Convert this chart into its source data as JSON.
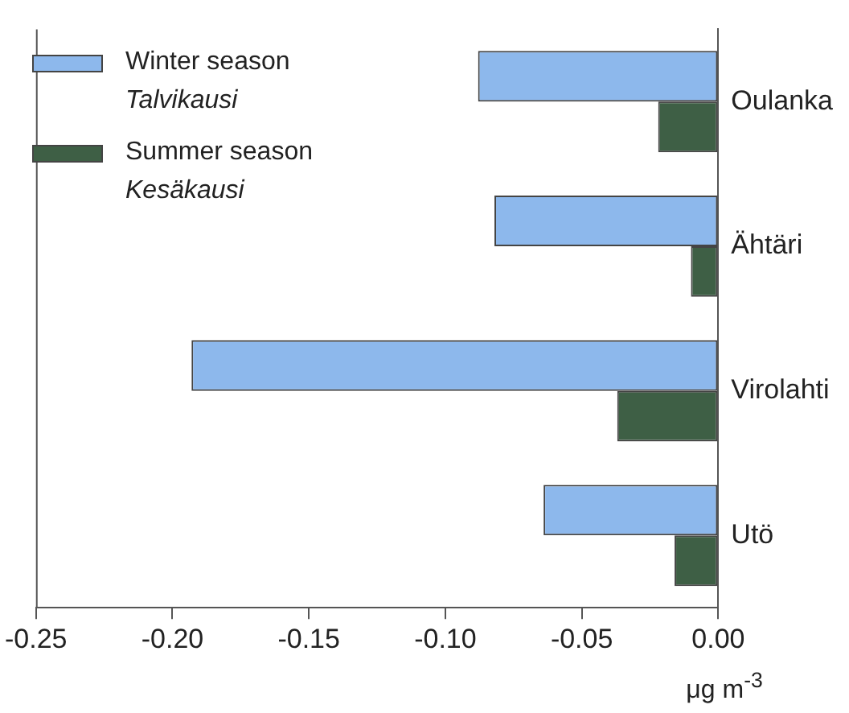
{
  "chart_data": {
    "type": "bar",
    "orientation": "horizontal",
    "xlabel": "μg m$^{-3}$",
    "categories": [
      "Oulanka",
      "Ähtäri",
      "Virolahti",
      "Utö"
    ],
    "series": [
      {
        "name": "Winter season\nTalvikausi",
        "color": "#8db8ec",
        "values": [
          -0.088,
          -0.082,
          -0.193,
          -0.064
        ]
      },
      {
        "name": "Summer season\nKesäkausi",
        "color": "#3e5f45",
        "values": [
          -0.022,
          -0.01,
          -0.037,
          -0.016
        ]
      }
    ],
    "xlim": [
      -0.25,
      0
    ],
    "xticks": [
      {
        "value": -0.25,
        "label": "-0.25"
      },
      {
        "value": -0.2,
        "label": "-0.20"
      },
      {
        "value": -0.15,
        "label": "-0.15"
      },
      {
        "value": -0.1,
        "label": "-0.10"
      },
      {
        "value": -0.05,
        "label": "-0.05"
      },
      {
        "value": 0,
        "label": "0.00"
      }
    ],
    "grid": false,
    "legend": "top left"
  }
}
